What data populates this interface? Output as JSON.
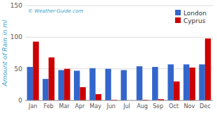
{
  "chart_data": {
    "type": "bar",
    "y_label": "Amount of Rain in ml",
    "annotations": [
      "© Weather-Guide.com"
    ],
    "categories": [
      "Jan",
      "Feb",
      "Mar",
      "Apr",
      "May",
      "Jun",
      "Jul",
      "Aug",
      "Sep",
      "Oct",
      "Nov",
      "Dec"
    ],
    "series": [
      {
        "name": "London",
        "color": "#3366CC",
        "values": [
          53,
          34,
          48,
          47,
          51,
          50,
          48,
          54,
          53,
          57,
          57,
          57
        ]
      },
      {
        "name": "Cyprus",
        "color": "#CC0000",
        "values": [
          93,
          68,
          50,
          21,
          10,
          1,
          0,
          1,
          2,
          30,
          52,
          98
        ]
      }
    ],
    "ylim": [
      0,
      150
    ],
    "yticks": [
      0,
      50,
      100,
      150
    ],
    "grid": true,
    "legend": "upper right"
  }
}
